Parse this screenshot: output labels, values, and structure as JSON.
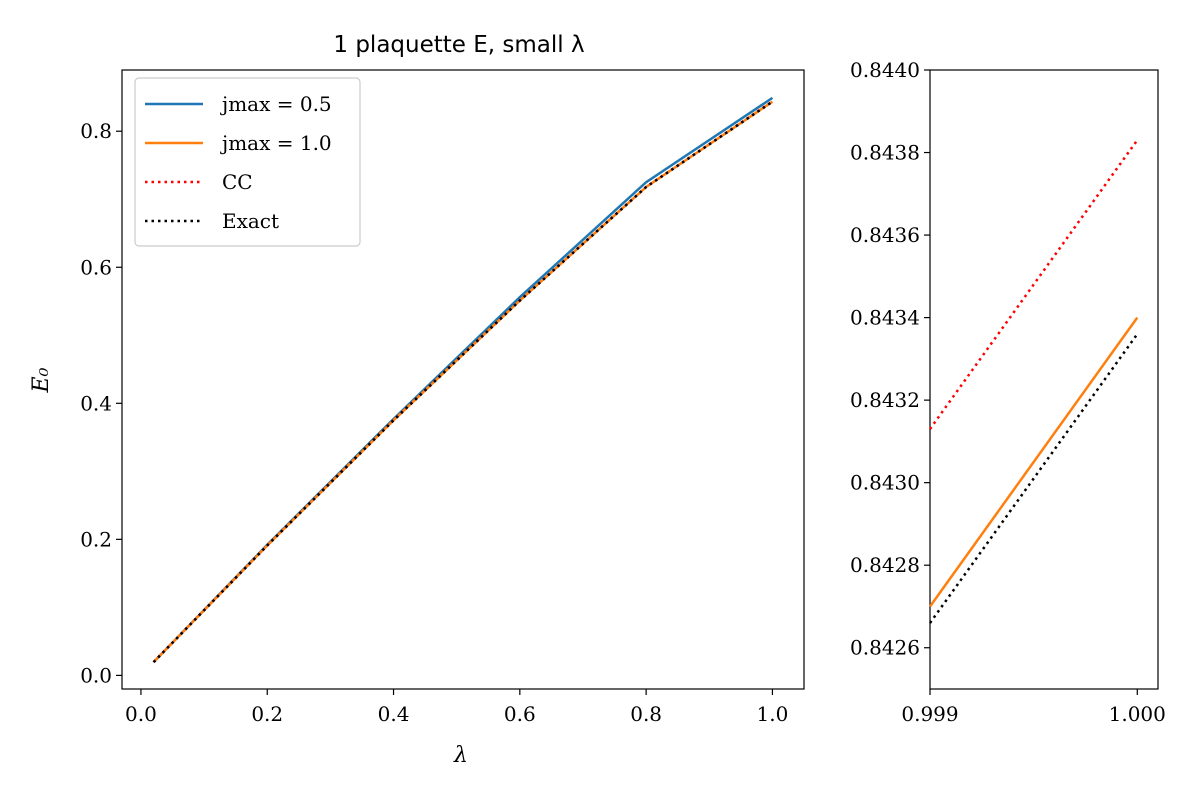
{
  "chart_data": [
    {
      "type": "line",
      "title": "1 plaquette E, small λ",
      "xlabel": "λ",
      "ylabel": "E₀",
      "xlim": [
        -0.03,
        1.05
      ],
      "ylim": [
        -0.02,
        0.89
      ],
      "xticks": [
        "0.0",
        "0.2",
        "0.4",
        "0.6",
        "0.8",
        "1.0"
      ],
      "yticks": [
        "0.0",
        "0.2",
        "0.4",
        "0.6",
        "0.8"
      ],
      "legend_position": "top-left",
      "series": [
        {
          "name": "jmax = 0.5",
          "color": "#1f77b4",
          "style": "solid",
          "x": [
            0.02,
            0.2,
            0.4,
            0.6,
            0.8,
            1.0
          ],
          "y": [
            0.0195,
            0.192,
            0.377,
            0.556,
            0.725,
            0.849
          ]
        },
        {
          "name": "jmax = 1.0",
          "color": "#ff7f0e",
          "style": "solid",
          "x": [
            0.02,
            0.2,
            0.4,
            0.6,
            0.8,
            1.0
          ],
          "y": [
            0.0195,
            0.191,
            0.375,
            0.551,
            0.718,
            0.8434
          ]
        },
        {
          "name": "CC",
          "color": "#ff0000",
          "style": "dotted",
          "x": [
            0.02,
            0.2,
            0.4,
            0.6,
            0.8,
            1.0
          ],
          "y": [
            0.0195,
            0.191,
            0.375,
            0.551,
            0.718,
            0.8438
          ]
        },
        {
          "name": "Exact",
          "color": "#000000",
          "style": "dotted",
          "x": [
            0.02,
            0.2,
            0.4,
            0.6,
            0.8,
            1.0
          ],
          "y": [
            0.0195,
            0.191,
            0.375,
            0.551,
            0.718,
            0.8434
          ]
        }
      ]
    },
    {
      "type": "line",
      "title": "",
      "xlabel": "",
      "ylabel": "",
      "xlim": [
        0.999,
        1.0001
      ],
      "ylim": [
        0.8425,
        0.844
      ],
      "xticks": [
        "0.999",
        "1.000"
      ],
      "yticks": [
        "0.8426",
        "0.8428",
        "0.8430",
        "0.8432",
        "0.8434",
        "0.8436",
        "0.8438",
        "0.8440"
      ],
      "series": [
        {
          "name": "CC",
          "color": "#ff0000",
          "style": "dotted",
          "x": [
            0.999,
            1.0
          ],
          "y": [
            0.84313,
            0.84383
          ]
        },
        {
          "name": "jmax = 1.0",
          "color": "#ff7f0e",
          "style": "solid",
          "x": [
            0.999,
            1.0
          ],
          "y": [
            0.8427,
            0.8434
          ]
        },
        {
          "name": "Exact",
          "color": "#000000",
          "style": "dotted",
          "x": [
            0.999,
            1.0
          ],
          "y": [
            0.84266,
            0.84336
          ]
        }
      ]
    }
  ]
}
